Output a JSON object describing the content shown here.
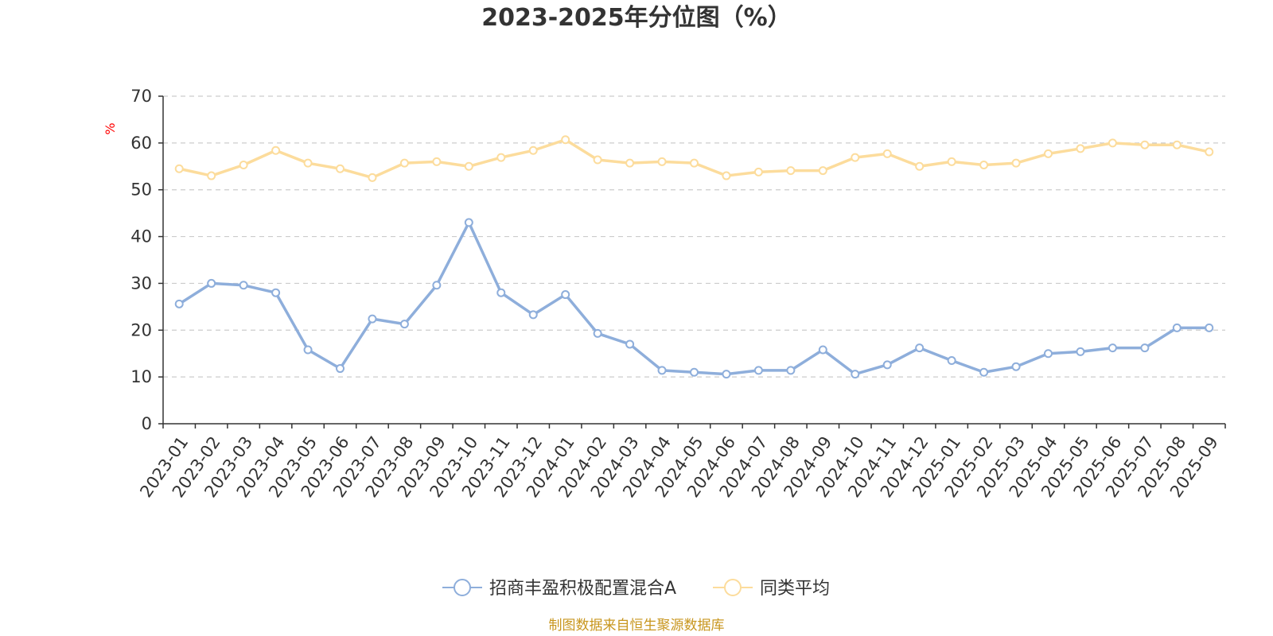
{
  "chart_data": {
    "type": "line",
    "title": "2023-2025年分位图（%）",
    "ylabel": "%",
    "ylim": [
      0,
      70
    ],
    "yticks": [
      0,
      10,
      20,
      30,
      40,
      50,
      60,
      70
    ],
    "grid": true,
    "legend_position": "bottom",
    "categories": [
      "2023-01",
      "2023-02",
      "2023-03",
      "2023-04",
      "2023-05",
      "2023-06",
      "2023-07",
      "2023-08",
      "2023-09",
      "2023-10",
      "2023-11",
      "2023-12",
      "2024-01",
      "2024-02",
      "2024-03",
      "2024-04",
      "2024-05",
      "2024-06",
      "2024-07",
      "2024-08",
      "2024-09",
      "2024-10",
      "2024-11",
      "2024-12",
      "2025-01",
      "2025-02",
      "2025-03",
      "2025-04",
      "2025-05",
      "2025-06",
      "2025-07",
      "2025-08",
      "2025-09"
    ],
    "series": [
      {
        "name": "招商丰盈积极配置混合A",
        "color": "#8eaedb",
        "values": [
          25.6,
          30.0,
          29.6,
          28.0,
          15.8,
          11.8,
          22.4,
          21.3,
          29.6,
          43.0,
          28.0,
          23.3,
          27.6,
          19.3,
          17.0,
          11.4,
          11.0,
          10.6,
          11.4,
          11.4,
          15.8,
          10.6,
          12.6,
          16.2,
          13.5,
          11.0,
          12.2,
          15.0,
          15.4,
          16.2,
          16.2,
          20.5,
          20.5
        ]
      },
      {
        "name": "同类平均",
        "color": "#fcdc9c",
        "values": [
          54.5,
          53.0,
          55.3,
          58.4,
          55.7,
          54.5,
          52.6,
          55.7,
          56.0,
          55.0,
          56.9,
          58.4,
          60.7,
          56.4,
          55.7,
          56.0,
          55.7,
          53.0,
          53.8,
          54.1,
          54.1,
          56.9,
          57.7,
          55.0,
          56.0,
          55.3,
          55.7,
          57.7,
          58.8,
          60.0,
          59.6,
          59.6,
          58.1
        ]
      }
    ]
  },
  "source_note": "制图数据来自恒生聚源数据库"
}
